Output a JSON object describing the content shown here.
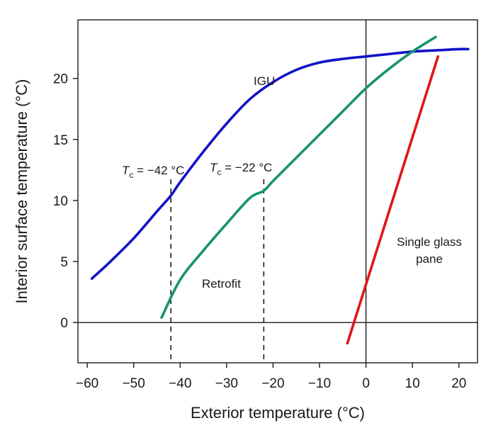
{
  "chart_data": {
    "type": "line",
    "xlabel": "Exterior temperature (°C)",
    "ylabel": "Interior surface temperature (°C)",
    "xlim": [
      -62,
      24
    ],
    "ylim": [
      -3.3,
      24.8
    ],
    "xticks": [
      -60,
      -50,
      -40,
      -30,
      -20,
      -10,
      0,
      10,
      20
    ],
    "xtick_labels": [
      "−60",
      "−50",
      "−40",
      "−30",
      "−20",
      "−10",
      "0",
      "10",
      "20"
    ],
    "yticks": [
      0,
      5,
      10,
      15,
      20
    ],
    "ytick_labels": [
      "0",
      "5",
      "10",
      "15",
      "20"
    ],
    "grid": false,
    "reference_lines": {
      "x": 0,
      "y": 0
    },
    "series": [
      {
        "name": "IGU",
        "color": "#1212c8",
        "x": [
          -59,
          -55,
          -50,
          -45,
          -42,
          -40,
          -35,
          -30,
          -25,
          -20,
          -15,
          -10,
          -5,
          0,
          5,
          10,
          15,
          20,
          22
        ],
        "y": [
          3.6,
          5.0,
          6.9,
          9.1,
          10.4,
          11.5,
          14.0,
          16.3,
          18.3,
          19.7,
          20.7,
          21.3,
          21.6,
          21.8,
          22.0,
          22.2,
          22.3,
          22.4,
          22.4
        ]
      },
      {
        "name": "Retrofit",
        "color": "#17946a",
        "x": [
          -44,
          -40,
          -35,
          -30,
          -25,
          -22,
          -20,
          -15,
          -10,
          -5,
          0,
          5,
          10,
          15
        ],
        "y": [
          0.4,
          3.5,
          5.9,
          8.1,
          10.2,
          10.8,
          11.6,
          13.5,
          15.4,
          17.3,
          19.2,
          20.8,
          22.2,
          23.4
        ]
      },
      {
        "name": "Single glass pane",
        "color": "#e01717",
        "x": [
          -4,
          15.5
        ],
        "y": [
          -1.7,
          21.8
        ]
      }
    ],
    "thresholds": [
      {
        "x": -42,
        "symbol": "T",
        "subscript": "c",
        "text": " = −42 °C"
      },
      {
        "x": -22,
        "symbol": "T",
        "subscript": "c",
        "text": " = −22 °C"
      }
    ],
    "annotations": {
      "igu": "IGU",
      "retrofit": "Retrofit",
      "single_line1": "Single glass",
      "single_line2": "pane"
    }
  }
}
